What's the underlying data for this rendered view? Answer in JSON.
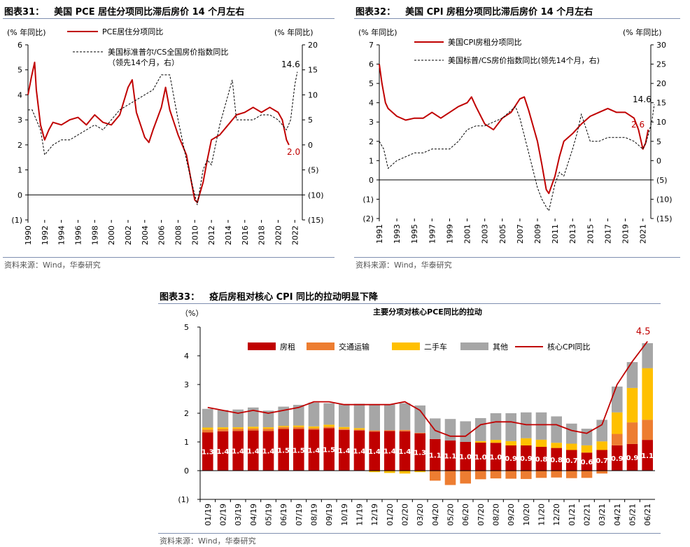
{
  "source_label": "资料来源：Wind，华泰研究",
  "colors": {
    "red": "#c00000",
    "gray": "#a6a6a6",
    "orange": "#ed7d31",
    "yellow": "#ffc000",
    "dash": "#000000"
  },
  "chart31": {
    "title_num": "图表31：",
    "title": "美国 PCE 居住分项同比滞后房价 14 个月左右",
    "left_unit": "(% 年同比)",
    "right_unit": "(% 年同比)",
    "legend": [
      "PCE居住分项同比",
      "美国标准普尔/CS全国房价指数同比",
      "（领先14个月，右）"
    ],
    "annot_last_left": "2.0",
    "annot_last_right": "14.6",
    "chart_data": {
      "type": "line",
      "x_ticks": [
        "1990",
        "1992",
        "1994",
        "1996",
        "1998",
        "2000",
        "2002",
        "2004",
        "2006",
        "2008",
        "2010",
        "2012",
        "2014",
        "2016",
        "2018",
        "2020",
        "2022"
      ],
      "ylim_left": [
        -1,
        6
      ],
      "yticks_left": [
        "6",
        "5",
        "4",
        "3",
        "2",
        "1",
        "0",
        "(1)"
      ],
      "ylim_right": [
        -15,
        20
      ],
      "yticks_right": [
        "20",
        "15",
        "10",
        "5",
        "0",
        "(5)",
        "(10)",
        "(15)"
      ],
      "series": [
        {
          "name": "PCE居住分项同比",
          "axis": "left",
          "x": [
            1990,
            1990.4,
            1990.8,
            1991,
            1991.5,
            1992,
            1992.5,
            1993,
            1994,
            1995,
            1996,
            1997,
            1998,
            1999,
            2000,
            2001,
            2002,
            2002.5,
            2003,
            2004,
            2004.5,
            2005,
            2006,
            2006.5,
            2007,
            2008,
            2009,
            2009.5,
            2010,
            2010.3,
            2011,
            2011.5,
            2012,
            2013,
            2014,
            2015,
            2016,
            2017,
            2018,
            2019,
            2020,
            2020.5,
            2021,
            2021.3
          ],
          "y": [
            4.0,
            4.7,
            5.3,
            4.2,
            2.8,
            2.2,
            2.6,
            2.9,
            2.8,
            3.0,
            3.1,
            2.8,
            3.2,
            2.9,
            2.8,
            3.2,
            4.3,
            4.6,
            3.3,
            2.3,
            2.1,
            2.6,
            3.5,
            4.3,
            3.4,
            2.4,
            1.6,
            0.7,
            -0.2,
            -0.3,
            0.5,
            1.4,
            2.2,
            2.4,
            2.8,
            3.2,
            3.3,
            3.5,
            3.3,
            3.5,
            3.3,
            3.0,
            2.2,
            2.0
          ]
        },
        {
          "name": "美国标准普尔/CS全国房价指数同比",
          "axis": "right",
          "x": [
            1990,
            1990.5,
            1991,
            1991.5,
            1992,
            1993,
            1994,
            1995,
            1996,
            1997,
            1998,
            1999,
            2000,
            2001,
            2002,
            2003,
            2004,
            2005,
            2006,
            2007,
            2008,
            2009,
            2010,
            2010.3,
            2011,
            2011.5,
            2012,
            2013,
            2014,
            2014.5,
            2015,
            2016,
            2017,
            2018,
            2019,
            2020,
            2021,
            2021.5,
            2022,
            2022.3
          ],
          "y": [
            7,
            7,
            5,
            3,
            -2,
            0,
            1,
            1,
            2,
            3,
            4,
            3,
            5,
            7,
            8,
            9,
            10,
            11,
            14,
            14,
            5,
            -3,
            -10,
            -12,
            -5,
            -3,
            -4,
            4,
            10,
            13,
            5,
            5,
            5,
            6,
            6,
            5,
            3,
            5,
            12,
            14.6
          ]
        }
      ]
    }
  },
  "chart32": {
    "title_num": "图表32：",
    "title": "美国 CPI 房租分项同比滞后房价 14 个月左右",
    "left_unit": "(% 年同比)",
    "right_unit": "(% 年同比)",
    "legend": [
      "美国CPI房租分项同比",
      "美国标普/CS房价指数同比(领先14个月，右)"
    ],
    "annot_last_left": "2.6",
    "annot_last_right": "14.6",
    "chart_data": {
      "type": "line",
      "x_ticks": [
        "1991",
        "1993",
        "1995",
        "1997",
        "1999",
        "2001",
        "2003",
        "2005",
        "2007",
        "2009",
        "2011",
        "2013",
        "2015",
        "2017",
        "2019",
        "2021"
      ],
      "ylim_left": [
        -2,
        7
      ],
      "yticks_left": [
        "7",
        "6",
        "5",
        "4",
        "3",
        "2",
        "1",
        "0",
        "(1)",
        "(2)"
      ],
      "ylim_right": [
        -15,
        30
      ],
      "yticks_right": [
        "30",
        "25",
        "20",
        "15",
        "10",
        "5",
        "0",
        "(5)",
        "(10)",
        "(15)"
      ],
      "series": [
        {
          "name": "美国CPI房租分项同比",
          "axis": "left",
          "x": [
            1991,
            1991.3,
            1991.7,
            1992,
            1993,
            1994,
            1995,
            1996,
            1997,
            1998,
            1999,
            2000,
            2001,
            2001.5,
            2002,
            2003,
            2004,
            2005,
            2006,
            2007,
            2007.5,
            2008,
            2009,
            2009.5,
            2010,
            2010.3,
            2011,
            2011.5,
            2012,
            2013,
            2014,
            2015,
            2016,
            2017,
            2018,
            2019,
            2020,
            2020.5,
            2021,
            2021.3,
            2021.6
          ],
          "y": [
            6.0,
            5.0,
            4.0,
            3.7,
            3.3,
            3.1,
            3.2,
            3.2,
            3.5,
            3.2,
            3.5,
            3.8,
            4.0,
            4.3,
            3.8,
            2.9,
            2.6,
            3.2,
            3.5,
            4.2,
            4.3,
            3.6,
            2.0,
            0.8,
            -0.5,
            -0.7,
            0.2,
            1.2,
            2.0,
            2.4,
            2.9,
            3.3,
            3.5,
            3.7,
            3.5,
            3.5,
            3.2,
            2.6,
            1.6,
            1.9,
            2.6
          ]
        },
        {
          "name": "美国标普/CS房价指数同比(领先14个月，右)",
          "axis": "right",
          "x": [
            1991,
            1991.5,
            1992,
            1992.5,
            1993,
            1994,
            1995,
            1996,
            1997,
            1998,
            1999,
            2000,
            2001,
            2002,
            2003,
            2004,
            2005,
            2006,
            2006.5,
            2007,
            2008,
            2009,
            2009.5,
            2010,
            2010.3,
            2011,
            2011.5,
            2012,
            2013,
            2013.5,
            2014,
            2015,
            2016,
            2017,
            2018,
            2019,
            2020,
            2021,
            2021.4,
            2022,
            2022.3
          ],
          "y": [
            5,
            3,
            -2,
            -1,
            0,
            1,
            2,
            2,
            3,
            3,
            3,
            5,
            8,
            9,
            9,
            10,
            11,
            13,
            14,
            11,
            2,
            -7,
            -10,
            -12,
            -13,
            -6,
            -3,
            -4,
            3,
            7,
            12,
            5,
            5,
            6,
            6,
            6,
            5,
            3,
            5,
            10,
            14.6
          ]
        }
      ]
    }
  },
  "chart33": {
    "title_num": "图表33：",
    "title": "疫后房租对核心 CPI 同比的拉动明显下降",
    "subtitle": "主要分项对核心PCE同比的拉动",
    "left_unit": "（%）",
    "legend": [
      "房租",
      "交通运输",
      "二手车",
      "其他",
      "核心CPI同比"
    ],
    "annot_last": "4.5",
    "chart_data": {
      "type": "bar",
      "ylim": [
        -1,
        5
      ],
      "yticks": [
        "5",
        "4",
        "3",
        "2",
        "1",
        "0",
        "(1)"
      ],
      "categories": [
        "01/19",
        "02/19",
        "03/19",
        "04/19",
        "05/19",
        "06/19",
        "07/19",
        "08/19",
        "09/19",
        "10/19",
        "11/19",
        "12/19",
        "01/20",
        "02/20",
        "03/20",
        "04/20",
        "05/20",
        "06/20",
        "07/20",
        "08/20",
        "09/20",
        "10/20",
        "11/20",
        "12/20",
        "01/21",
        "02/21",
        "03/21",
        "04/21",
        "05/21",
        "06/21"
      ],
      "x_ticks": [
        "01/19",
        "02/19",
        "03/19",
        "04/19",
        "05/19",
        "06/19",
        "07/19",
        "08/19",
        "09/19",
        "10/19",
        "11/19",
        "12/19",
        "01/20",
        "02/20",
        "03/20",
        "04/20",
        "05/20",
        "06/20",
        "07/20",
        "08/20",
        "09/20",
        "10/20",
        "11/20",
        "12/20",
        "01/21",
        "02/21",
        "03/21",
        "04/21",
        "05/21",
        "06/21"
      ],
      "series": [
        {
          "name": "房租",
          "labels": [
            "1.3",
            "1.4",
            "1.4",
            "1.4",
            "1.4",
            "1.5",
            "1.5",
            "1.4",
            "1.5",
            "1.4",
            "1.4",
            "1.4",
            "1.4",
            "1.4",
            "1.3",
            "1.1",
            "1.1",
            "1.0",
            "1.0",
            "1.0",
            "0.9",
            "0.9",
            "0.8",
            "0.8",
            "0.7",
            "0.6",
            "0.7",
            "0.9",
            "0.9",
            "1.1"
          ],
          "values": [
            1.33,
            1.37,
            1.38,
            1.4,
            1.38,
            1.45,
            1.45,
            1.43,
            1.48,
            1.42,
            1.4,
            1.36,
            1.38,
            1.37,
            1.3,
            1.1,
            1.05,
            1.0,
            0.98,
            0.97,
            0.88,
            0.88,
            0.83,
            0.79,
            0.72,
            0.63,
            0.72,
            0.88,
            0.93,
            1.07
          ]
        },
        {
          "name": "交通运输",
          "values": [
            0.1,
            0.08,
            0.08,
            0.07,
            0.08,
            0.07,
            0.07,
            0.05,
            0.05,
            0.04,
            0.03,
            0.04,
            0.03,
            0.05,
            0.02,
            -0.35,
            -0.5,
            -0.45,
            -0.3,
            -0.27,
            -0.28,
            -0.29,
            -0.25,
            -0.24,
            -0.26,
            -0.25,
            -0.1,
            0.4,
            0.75,
            0.7
          ]
        },
        {
          "name": "二手车",
          "values": [
            0.07,
            0.06,
            0.05,
            0.06,
            0.05,
            0.04,
            0.05,
            0.06,
            0.07,
            0.06,
            0.05,
            -0.05,
            -0.08,
            -0.1,
            -0.05,
            0.0,
            0.0,
            0.0,
            0.05,
            0.1,
            0.15,
            0.25,
            0.25,
            0.18,
            0.22,
            0.25,
            0.3,
            0.75,
            1.2,
            1.8
          ]
        },
        {
          "name": "其他",
          "values": [
            0.65,
            0.6,
            0.62,
            0.67,
            0.58,
            0.67,
            0.72,
            0.83,
            0.75,
            0.8,
            0.85,
            0.9,
            0.9,
            0.93,
            0.95,
            0.72,
            0.75,
            0.72,
            0.8,
            0.93,
            0.97,
            0.9,
            0.95,
            0.92,
            0.7,
            0.58,
            0.75,
            0.9,
            0.9,
            0.87
          ]
        },
        {
          "name": "核心CPI同比",
          "type": "line",
          "values": [
            2.2,
            2.1,
            2.0,
            2.1,
            2.0,
            2.1,
            2.2,
            2.4,
            2.4,
            2.3,
            2.3,
            2.3,
            2.3,
            2.4,
            2.1,
            1.4,
            1.2,
            1.2,
            1.6,
            1.7,
            1.7,
            1.6,
            1.6,
            1.6,
            1.4,
            1.3,
            1.6,
            3.0,
            3.8,
            4.5
          ]
        }
      ]
    }
  }
}
